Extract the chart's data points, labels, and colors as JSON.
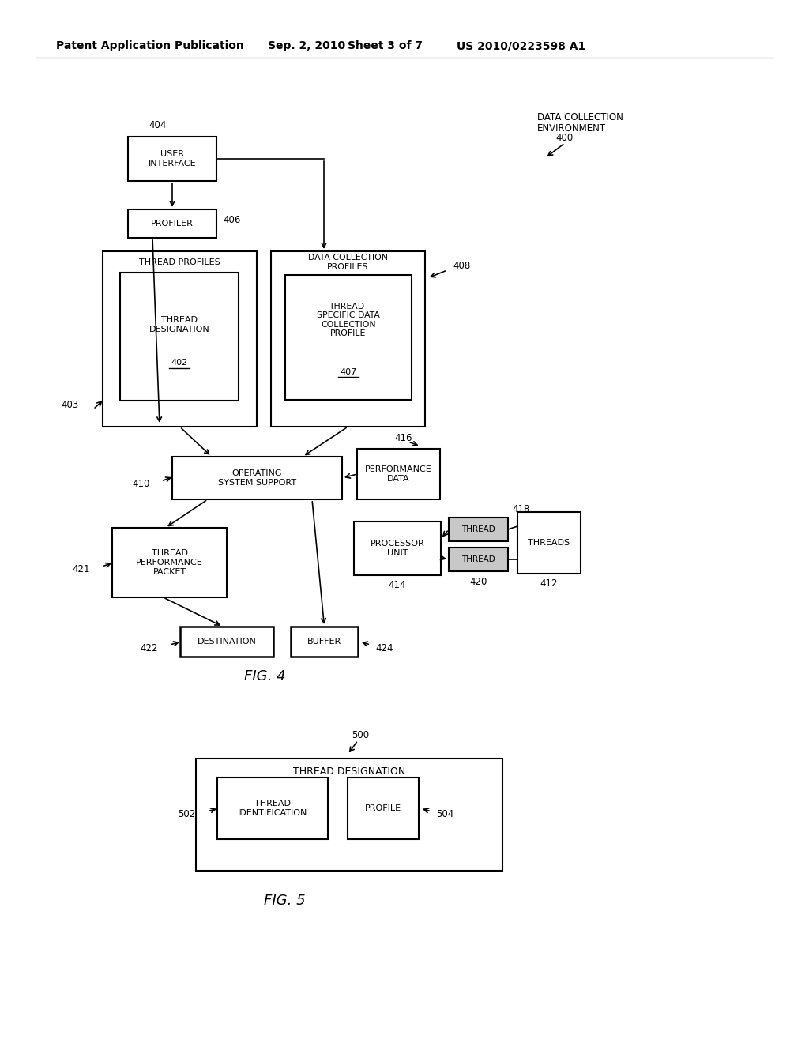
{
  "bg": "#ffffff",
  "h1": "Patent Application Publication",
  "h2": "Sep. 2, 2010",
  "h3": "Sheet 3 of 7",
  "h4": "US 2010/0223598 A1"
}
